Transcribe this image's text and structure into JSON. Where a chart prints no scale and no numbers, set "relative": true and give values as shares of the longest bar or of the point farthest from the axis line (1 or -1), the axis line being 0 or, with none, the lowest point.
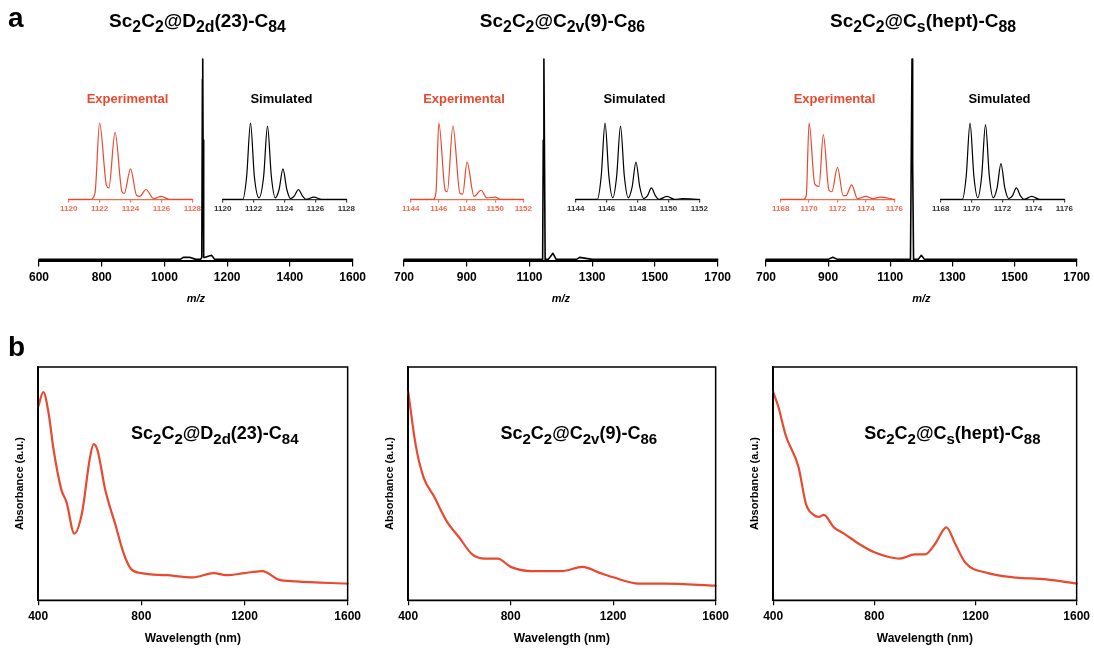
{
  "chart_data": [
    {
      "type": "line",
      "title": "Sc$_{2}$C$_{2}$@D$_{2d}$(23)-C$_{84}$",
      "xlabel": "m/z",
      "relative": true,
      "color": "#000000",
      "xlim": [
        600,
        1600
      ],
      "xticks": [
        600,
        800,
        1000,
        1200,
        1400,
        1600
      ],
      "annotations": [
        "a"
      ],
      "x": [
        600,
        650,
        700,
        750,
        800,
        850,
        900,
        950,
        1000,
        1050,
        1060,
        1080,
        1100,
        1115,
        1119,
        1121,
        1122,
        1123,
        1125,
        1130,
        1150,
        1160,
        1200,
        1250,
        1300,
        1350,
        1400,
        1450,
        1500,
        1550,
        1600
      ],
      "values": [
        0.01,
        0.01,
        0.01,
        0.01,
        0.01,
        0.01,
        0.01,
        0.01,
        0.01,
        0.01,
        0.02,
        0.02,
        0.01,
        0.01,
        0.02,
        0.9,
        1,
        0.6,
        0.02,
        0.02,
        0.03,
        0.01,
        0.01,
        0.01,
        0.01,
        0.01,
        0.01,
        0.01,
        0.01,
        0.01,
        0.01
      ]
    },
    {
      "type": "line",
      "title": "Experimental",
      "relative": true,
      "color": "#e8492f",
      "xlim": [
        1120,
        1128
      ],
      "xticks": [
        1120,
        1122,
        1124,
        1126,
        1128
      ],
      "x": [
        1120,
        1121.4,
        1121.7,
        1122,
        1122.45,
        1122.6,
        1123,
        1123.45,
        1123.6,
        1124,
        1124.4,
        1124.6,
        1125,
        1125.5,
        1126,
        1126.5,
        1128
      ],
      "values": [
        0,
        0,
        0.08,
        1,
        0.18,
        0.15,
        0.88,
        0.1,
        0.08,
        0.4,
        0.05,
        0.04,
        0.13,
        0.01,
        0.04,
        0,
        0
      ]
    },
    {
      "type": "line",
      "title": "Simulated",
      "relative": true,
      "color": "#000000",
      "xlim": [
        1120,
        1128
      ],
      "xticks": [
        1120,
        1122,
        1124,
        1126,
        1128
      ],
      "x": [
        1120,
        1121.3,
        1121.55,
        1121.8,
        1122.05,
        1122.35,
        1122.65,
        1122.9,
        1123.15,
        1123.4,
        1123.65,
        1123.9,
        1124.15,
        1124.4,
        1124.65,
        1124.9,
        1125.15,
        1125.4,
        1125.9,
        1126.4,
        1128
      ],
      "values": [
        0,
        0,
        0.3,
        1,
        0.3,
        0.02,
        0.3,
        0.96,
        0.3,
        0.02,
        0.13,
        0.4,
        0.13,
        0.01,
        0.05,
        0.13,
        0.05,
        0,
        0.03,
        0,
        0
      ]
    },
    {
      "type": "line",
      "title": "Sc$_{2}$C$_{2}$@C$_{2v}$(9)-C$_{86}$",
      "xlabel": "m/z",
      "relative": true,
      "color": "#000000",
      "xlim": [
        700,
        1700
      ],
      "xticks": [
        700,
        900,
        1100,
        1300,
        1500,
        1700
      ],
      "x": [
        700,
        750,
        800,
        850,
        900,
        950,
        1000,
        1050,
        1100,
        1130,
        1142,
        1144,
        1146,
        1148,
        1150,
        1160,
        1175,
        1185,
        1200,
        1250,
        1260,
        1300,
        1350,
        1400,
        1450,
        1500,
        1550,
        1600,
        1650,
        1700
      ],
      "values": [
        0.01,
        0.01,
        0.01,
        0.01,
        0.01,
        0.01,
        0.01,
        0.01,
        0.01,
        0.01,
        0.01,
        0.6,
        1,
        0.5,
        0.01,
        0.01,
        0.04,
        0.01,
        0.01,
        0.01,
        0.02,
        0.01,
        0.01,
        0.01,
        0.01,
        0.01,
        0.01,
        0.01,
        0.01,
        0.01
      ]
    },
    {
      "type": "line",
      "title": "Experimental",
      "relative": true,
      "color": "#e8492f",
      "xlim": [
        1144,
        1152
      ],
      "xticks": [
        1144,
        1146,
        1148,
        1150,
        1152
      ],
      "x": [
        1144,
        1145.6,
        1145.8,
        1146,
        1146.45,
        1146.6,
        1147,
        1147.5,
        1147.7,
        1148,
        1148.5,
        1149,
        1149.4,
        1150,
        1150.4,
        1152
      ],
      "values": [
        0,
        0,
        0.1,
        1,
        0.12,
        0.1,
        0.96,
        0.08,
        0.07,
        0.49,
        0.04,
        0.12,
        0.02,
        0.03,
        0,
        0
      ]
    },
    {
      "type": "line",
      "title": "Simulated",
      "relative": true,
      "color": "#000000",
      "xlim": [
        1144,
        1152
      ],
      "xticks": [
        1144,
        1146,
        1148,
        1150,
        1152
      ],
      "x": [
        1144,
        1145.4,
        1145.65,
        1145.9,
        1146.15,
        1146.4,
        1146.65,
        1146.9,
        1147.15,
        1147.4,
        1147.65,
        1147.9,
        1148.15,
        1148.4,
        1148.65,
        1148.9,
        1149.15,
        1149.4,
        1149.9,
        1150.4,
        1150.9,
        1152
      ],
      "values": [
        0,
        0,
        0.3,
        1,
        0.3,
        0.02,
        0.3,
        0.96,
        0.3,
        0.02,
        0.16,
        0.49,
        0.16,
        0.01,
        0.05,
        0.15,
        0.05,
        0,
        0.04,
        0,
        0.01,
        0
      ]
    },
    {
      "type": "line",
      "title": "Sc$_{2}$C$_{2}$@C$_{s}$(hept)-C$_{88}$",
      "xlabel": "m/z",
      "relative": true,
      "color": "#000000",
      "xlim": [
        700,
        1700
      ],
      "xticks": [
        700,
        900,
        1100,
        1300,
        1500,
        1700
      ],
      "x": [
        700,
        750,
        800,
        850,
        900,
        915,
        930,
        1000,
        1050,
        1100,
        1150,
        1165,
        1168,
        1170,
        1172,
        1175,
        1190,
        1200,
        1210,
        1250,
        1300,
        1350,
        1400,
        1450,
        1500,
        1550,
        1600,
        1650,
        1700
      ],
      "values": [
        0.01,
        0.01,
        0.01,
        0.01,
        0.01,
        0.02,
        0.01,
        0.01,
        0.01,
        0.01,
        0.01,
        0.01,
        0.6,
        1,
        0.5,
        0.01,
        0.01,
        0.03,
        0.01,
        0.01,
        0.01,
        0.01,
        0.01,
        0.01,
        0.01,
        0.01,
        0.01,
        0.01,
        0.01
      ]
    },
    {
      "type": "line",
      "title": "Experimental",
      "relative": true,
      "color": "#e8492f",
      "xlim": [
        1168,
        1176
      ],
      "xticks": [
        1168,
        1170,
        1172,
        1174,
        1176
      ],
      "x": [
        1168,
        1169.6,
        1169.8,
        1170,
        1170.4,
        1170.7,
        1171,
        1171.4,
        1171.6,
        1172,
        1172.4,
        1172.6,
        1173,
        1173.4,
        1174,
        1174.5,
        1175,
        1176
      ],
      "values": [
        0,
        0,
        0.05,
        1,
        0.2,
        0.17,
        0.85,
        0.12,
        0.1,
        0.42,
        0.05,
        0.05,
        0.19,
        0.01,
        0.04,
        0.01,
        0.03,
        0
      ]
    },
    {
      "type": "line",
      "title": "Simulated",
      "relative": true,
      "color": "#000000",
      "xlim": [
        1168,
        1176
      ],
      "xticks": [
        1168,
        1170,
        1172,
        1174,
        1176
      ],
      "x": [
        1168,
        1169.4,
        1169.65,
        1169.9,
        1170.15,
        1170.4,
        1170.65,
        1170.9,
        1171.15,
        1171.4,
        1171.65,
        1171.9,
        1172.15,
        1172.4,
        1172.65,
        1172.9,
        1173.15,
        1173.4,
        1173.9,
        1174.4,
        1176
      ],
      "values": [
        0,
        0,
        0.3,
        1,
        0.3,
        0.02,
        0.3,
        0.98,
        0.3,
        0.02,
        0.15,
        0.47,
        0.15,
        0.01,
        0.05,
        0.15,
        0.05,
        0,
        0.04,
        0,
        0
      ]
    },
    {
      "type": "line",
      "title": "Sc$_{2}$C$_{2}$@D$_{2d}$(23)-C$_{84}$",
      "xlabel": "Wavelength (nm)",
      "ylabel": "Absorbance (a.u.)",
      "relative": true,
      "color": "#e8492f",
      "xlim": [
        400,
        1600
      ],
      "xticks": [
        400,
        800,
        1200,
        1600
      ],
      "annotations": [
        "b"
      ],
      "x": [
        400,
        420,
        440,
        460,
        490,
        510,
        540,
        570,
        600,
        615,
        630,
        660,
        700,
        730,
        760,
        800,
        900,
        1000,
        1080,
        1130,
        1200,
        1270,
        1330,
        1400,
        1600
      ],
      "values": [
        0.93,
        1,
        0.9,
        0.72,
        0.53,
        0.47,
        0.32,
        0.42,
        0.68,
        0.75,
        0.72,
        0.53,
        0.36,
        0.23,
        0.15,
        0.13,
        0.12,
        0.11,
        0.13,
        0.12,
        0.13,
        0.14,
        0.1,
        0.09,
        0.08
      ]
    },
    {
      "type": "line",
      "title": "Sc$_{2}$C$_{2}$@C$_{2v}$(9)-C$_{86}$",
      "xlabel": "Wavelength (nm)",
      "ylabel": "Absorbance (a.u.)",
      "relative": true,
      "color": "#e8492f",
      "xlim": [
        400,
        1600
      ],
      "xticks": [
        400,
        800,
        1200,
        1600
      ],
      "x": [
        400,
        430,
        460,
        500,
        550,
        600,
        650,
        700,
        750,
        800,
        880,
        1000,
        1080,
        1150,
        1200,
        1300,
        1400,
        1600
      ],
      "values": [
        1,
        0.74,
        0.59,
        0.5,
        0.38,
        0.3,
        0.22,
        0.2,
        0.2,
        0.16,
        0.14,
        0.14,
        0.16,
        0.13,
        0.11,
        0.08,
        0.08,
        0.07
      ]
    },
    {
      "type": "line",
      "title": "Sc$_{2}$C$_{2}$@C$_{s}$(hept)-C$_{88}$",
      "xlabel": "Wavelength (nm)",
      "ylabel": "Absorbance (a.u.)",
      "relative": true,
      "color": "#e8492f",
      "xlim": [
        400,
        1600
      ],
      "xticks": [
        400,
        800,
        1200,
        1600
      ],
      "x": [
        400,
        420,
        450,
        500,
        530,
        560,
        580,
        600,
        640,
        680,
        740,
        800,
        850,
        900,
        960,
        1000,
        1040,
        1085,
        1120,
        1160,
        1250,
        1350,
        1480,
        1600
      ],
      "values": [
        1,
        0.93,
        0.79,
        0.64,
        0.46,
        0.41,
        0.4,
        0.41,
        0.35,
        0.32,
        0.27,
        0.23,
        0.21,
        0.2,
        0.22,
        0.22,
        0.27,
        0.35,
        0.27,
        0.18,
        0.13,
        0.11,
        0.1,
        0.08
      ]
    }
  ]
}
